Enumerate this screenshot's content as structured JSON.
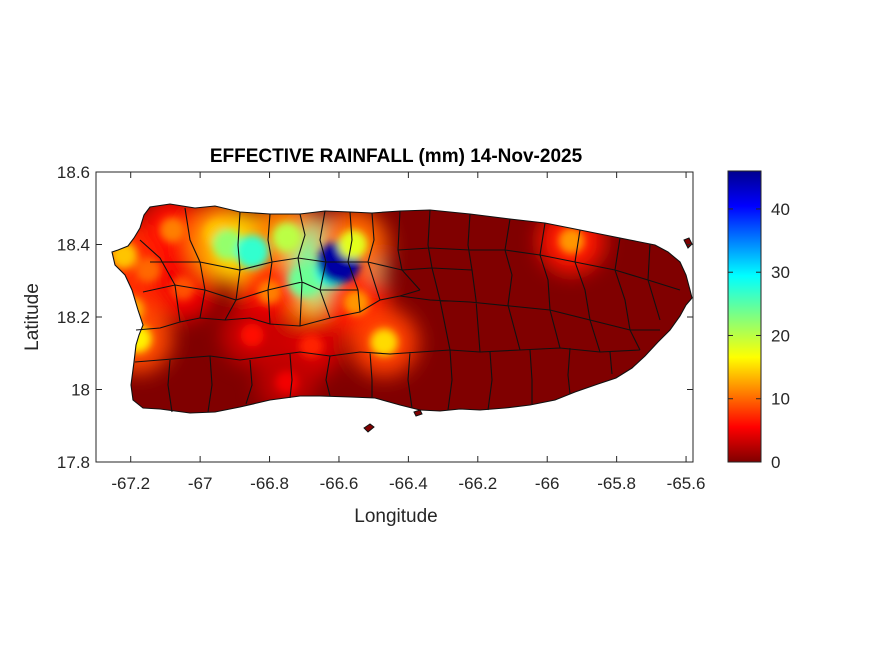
{
  "chart_data": {
    "type": "heatmap",
    "title": "EFFECTIVE RAINFALL (mm) 14-Nov-2025",
    "xlabel": "Longitude",
    "ylabel": "Latitude",
    "xlim": [
      -67.3,
      -65.58
    ],
    "ylim": [
      17.8,
      18.6
    ],
    "x_ticks": [
      -67.2,
      -67,
      -66.8,
      -66.6,
      -66.4,
      -66.2,
      -66,
      -65.8,
      -65.6
    ],
    "x_tick_labels": [
      "-67.2",
      "-67",
      "-66.8",
      "-66.6",
      "-66.4",
      "-66.2",
      "-66",
      "-65.8",
      "-65.6"
    ],
    "y_ticks": [
      17.8,
      18,
      18.2,
      18.4,
      18.6
    ],
    "y_tick_labels": [
      "17.8",
      "18",
      "18.2",
      "18.4",
      "18.6"
    ],
    "colorbar": {
      "min": 0,
      "max": 46,
      "ticks": [
        0,
        10,
        20,
        30,
        40
      ],
      "tick_labels": [
        "0",
        "10",
        "20",
        "30",
        "40"
      ],
      "colormap": "jet_reversed"
    },
    "rain_cells": [
      {
        "lon": -67.15,
        "lat": 18.33,
        "value": 10
      },
      {
        "lon": -67.05,
        "lat": 18.28,
        "value": 9
      },
      {
        "lon": -67.2,
        "lat": 18.22,
        "value": 13
      },
      {
        "lon": -67.18,
        "lat": 18.14,
        "value": 16
      },
      {
        "lon": -67.22,
        "lat": 18.37,
        "value": 14
      },
      {
        "lon": -67.08,
        "lat": 18.44,
        "value": 11
      },
      {
        "lon": -66.95,
        "lat": 18.43,
        "value": 14
      },
      {
        "lon": -66.92,
        "lat": 18.4,
        "value": 22
      },
      {
        "lon": -66.85,
        "lat": 18.38,
        "value": 27
      },
      {
        "lon": -66.75,
        "lat": 18.42,
        "value": 20
      },
      {
        "lon": -66.7,
        "lat": 18.3,
        "value": 24
      },
      {
        "lon": -66.62,
        "lat": 18.33,
        "value": 28
      },
      {
        "lon": -66.6,
        "lat": 18.35,
        "value": 45
      },
      {
        "lon": -66.56,
        "lat": 18.4,
        "value": 18
      },
      {
        "lon": -66.8,
        "lat": 18.27,
        "value": 11
      },
      {
        "lon": -66.55,
        "lat": 18.24,
        "value": 12
      },
      {
        "lon": -66.47,
        "lat": 18.13,
        "value": 15
      },
      {
        "lon": -66.85,
        "lat": 18.15,
        "value": 6
      },
      {
        "lon": -66.68,
        "lat": 18.12,
        "value": 7
      },
      {
        "lon": -66.75,
        "lat": 18.02,
        "value": 5
      },
      {
        "lon": -65.93,
        "lat": 18.41,
        "value": 12
      }
    ]
  }
}
